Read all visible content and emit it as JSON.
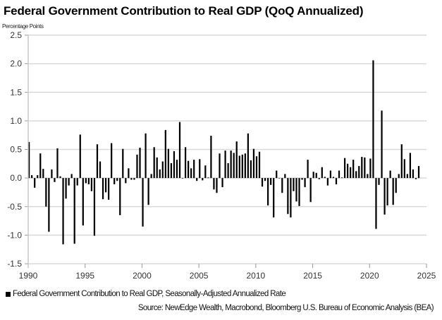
{
  "chart_data": {
    "type": "bar",
    "title": "Federal Government Contribution to Real GDP (QoQ Annualized)",
    "ylabel": "Percentage Points",
    "xlabel": "",
    "ylim": [
      -1.5,
      2.5
    ],
    "yticks": [
      "2.5",
      "2.0",
      "1.5",
      "1.0",
      "0.5",
      "0.0",
      "-0.5",
      "-1.0",
      "-1.5"
    ],
    "ytick_values": [
      2.5,
      2.0,
      1.5,
      1.0,
      0.5,
      0.0,
      -0.5,
      -1.0,
      -1.5
    ],
    "xlim": [
      1990,
      2025
    ],
    "xticks": [
      "1990",
      "1995",
      "2000",
      "2005",
      "2010",
      "2015",
      "2020",
      "2025"
    ],
    "xtick_values": [
      1990,
      1995,
      2000,
      2005,
      2010,
      2015,
      2020,
      2025
    ],
    "grid": true,
    "frequency": "quarterly",
    "start": "1990 Q1",
    "end": "2024 Q2",
    "series": [
      {
        "name": "Federal Government Contribution to Real GDP, Seasonally-Adjusted Annualized Rate",
        "color": "#000000",
        "values": [
          0.63,
          0.05,
          -0.17,
          0.05,
          0.43,
          0.16,
          -0.5,
          -0.94,
          0.15,
          -0.07,
          0.52,
          0.03,
          -1.16,
          -0.36,
          -0.13,
          0.07,
          -1.15,
          -0.13,
          0.76,
          -0.83,
          -0.09,
          -0.11,
          -0.23,
          -1.01,
          0.59,
          0.29,
          -0.37,
          -0.25,
          -0.38,
          0.61,
          -0.11,
          -0.05,
          -0.65,
          0.51,
          -0.09,
          0.17,
          -0.03,
          -0.03,
          0.41,
          0.53,
          -0.85,
          0.78,
          -0.47,
          0.07,
          0.54,
          0.36,
          0.15,
          0.29,
          0.84,
          0.51,
          0.26,
          0.47,
          0.32,
          0.98,
          0.0,
          0.54,
          0.3,
          0.17,
          0.32,
          -0.05,
          0.33,
          -0.04,
          0.22,
          0.01,
          0.74,
          -0.2,
          -0.26,
          0.43,
          -0.16,
          0.48,
          0.26,
          0.48,
          0.44,
          0.64,
          0.39,
          0.41,
          0.43,
          0.78,
          0.31,
          0.51,
          0.38,
          0.46,
          -0.15,
          -0.05,
          -0.48,
          -0.12,
          -0.69,
          0.13,
          0.0,
          -0.26,
          0.07,
          -0.63,
          -0.69,
          -0.23,
          -0.41,
          -0.49,
          -0.03,
          -0.16,
          0.32,
          -0.42,
          0.11,
          0.09,
          -0.02,
          0.19,
          0.02,
          -0.13,
          0.13,
          0.02,
          -0.11,
          0.13,
          0.01,
          0.35,
          0.25,
          0.19,
          0.32,
          0.12,
          0.21,
          0.37,
          0.36,
          0.07,
          0.34,
          2.06,
          -0.89,
          -0.12,
          1.18,
          -0.64,
          -0.48,
          0.13,
          -0.47,
          -0.26,
          0.07,
          0.59,
          0.33,
          0.07,
          0.44,
          0.15,
          -0.02,
          0.21
        ]
      }
    ],
    "legend": {
      "position": "bottom-left",
      "label": "Federal Government Contribution to Real GDP, Seasonally-Adjusted Annualized Rate"
    },
    "source": "Source: NewEdge Wealth, Macrobond, Bloomberg U.S. Bureau of Economic Analysis (BEA)"
  }
}
